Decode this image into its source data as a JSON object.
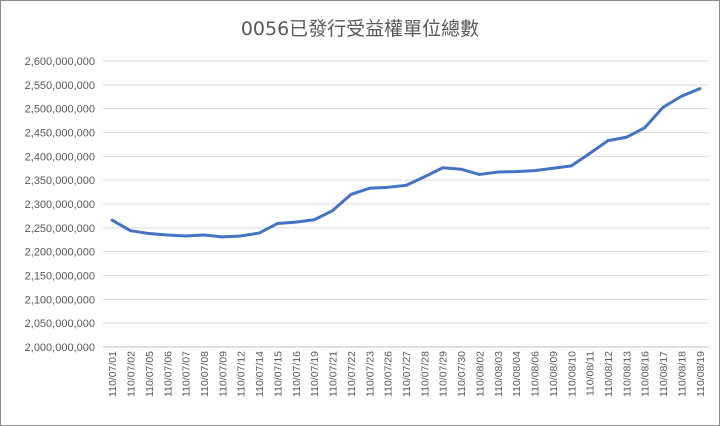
{
  "chart_data": {
    "type": "line",
    "title": "0056已發行受益權單位總數",
    "xlabel": "",
    "ylabel": "",
    "ylim": [
      2000000000,
      2600000000
    ],
    "y_ticks": [
      "2,600,000,000",
      "2,550,000,000",
      "2,500,000,000",
      "2,450,000,000",
      "2,400,000,000",
      "2,350,000,000",
      "2,300,000,000",
      "2,250,000,000",
      "2,200,000,000",
      "2,150,000,000",
      "2,100,000,000",
      "2,050,000,000",
      "2,000,000,000"
    ],
    "grid": true,
    "legend": "none",
    "line_color": "#4472c4",
    "categories": [
      "110/07/01",
      "110/07/02",
      "110/07/05",
      "110/07/06",
      "110/07/07",
      "110/07/08",
      "110/07/09",
      "110/07/12",
      "110/07/14",
      "110/07/15",
      "110/07/16",
      "110/07/19",
      "110/07/21",
      "110/07/22",
      "110/07/23",
      "110/07/26",
      "110/07/27",
      "110/07/28",
      "110/07/29",
      "110/07/30",
      "110/08/02",
      "110/08/03",
      "110/08/04",
      "110/08/06",
      "110/08/09",
      "110/08/10",
      "110/08/11",
      "110/08/12",
      "110/08/13",
      "110/08/16",
      "110/08/17",
      "110/08/18",
      "110/08/19"
    ],
    "series": [
      {
        "values": [
          2266000000,
          2244000000,
          2238000000,
          2235000000,
          2233000000,
          2235000000,
          2231000000,
          2233000000,
          2239000000,
          2259000000,
          2262000000,
          2267000000,
          2286000000,
          2320000000,
          2333000000,
          2335000000,
          2339000000,
          2357000000,
          2376000000,
          2373000000,
          2362000000,
          2367000000,
          2368000000,
          2370000000,
          2375000000,
          2380000000,
          2406000000,
          2433000000,
          2440000000,
          2460000000,
          2503000000,
          2526000000,
          2542000000
        ]
      }
    ]
  }
}
